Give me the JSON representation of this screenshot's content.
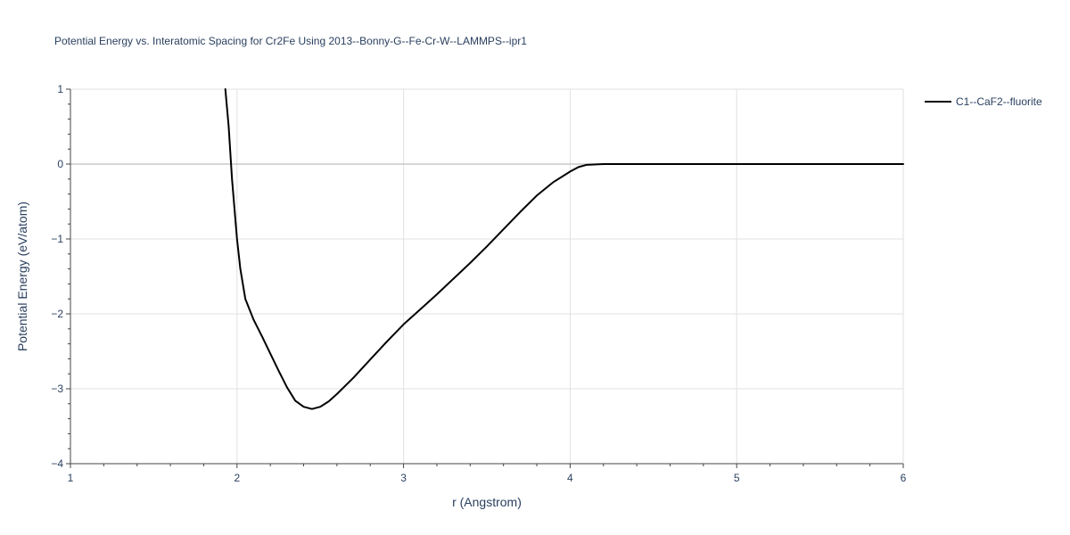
{
  "chart_data": {
    "type": "line",
    "title": "Potential Energy vs. Interatomic Spacing for Cr2Fe Using 2013--Bonny-G--Fe-Cr-W--LAMMPS--ipr1",
    "xlabel": "r (Angstrom)",
    "ylabel": "Potential Energy (eV/atom)",
    "xlim": [
      1,
      6
    ],
    "ylim": [
      -4,
      1
    ],
    "x_ticks": [
      1,
      2,
      3,
      4,
      5,
      6
    ],
    "y_ticks": [
      1,
      0,
      -1,
      -2,
      -3,
      -4
    ],
    "x_tick_labels": [
      "1",
      "2",
      "3",
      "4",
      "5",
      "6"
    ],
    "y_tick_labels": [
      "1",
      "0",
      "−1",
      "−2",
      "−3",
      "−4"
    ],
    "grid": true,
    "legend_position": "top-right",
    "series": [
      {
        "name": "C1--CaF2--fluorite",
        "color": "#000000",
        "x": [
          1.93,
          1.95,
          1.97,
          2.0,
          2.02,
          2.05,
          2.1,
          2.15,
          2.2,
          2.25,
          2.3,
          2.35,
          2.4,
          2.45,
          2.5,
          2.55,
          2.6,
          2.7,
          2.8,
          2.9,
          3.0,
          3.1,
          3.2,
          3.3,
          3.4,
          3.5,
          3.6,
          3.7,
          3.8,
          3.9,
          4.0,
          4.05,
          4.1,
          4.2,
          4.3,
          4.5,
          5.0,
          5.5,
          6.0
        ],
        "y": [
          1.0,
          0.5,
          -0.2,
          -1.0,
          -1.4,
          -1.8,
          -2.08,
          -2.3,
          -2.53,
          -2.76,
          -2.98,
          -3.16,
          -3.24,
          -3.27,
          -3.24,
          -3.17,
          -3.07,
          -2.85,
          -2.61,
          -2.37,
          -2.14,
          -1.94,
          -1.74,
          -1.53,
          -1.32,
          -1.1,
          -0.87,
          -0.64,
          -0.42,
          -0.24,
          -0.1,
          -0.04,
          -0.01,
          0.0,
          0.0,
          0.0,
          0.0,
          0.0,
          0.0
        ]
      }
    ]
  }
}
